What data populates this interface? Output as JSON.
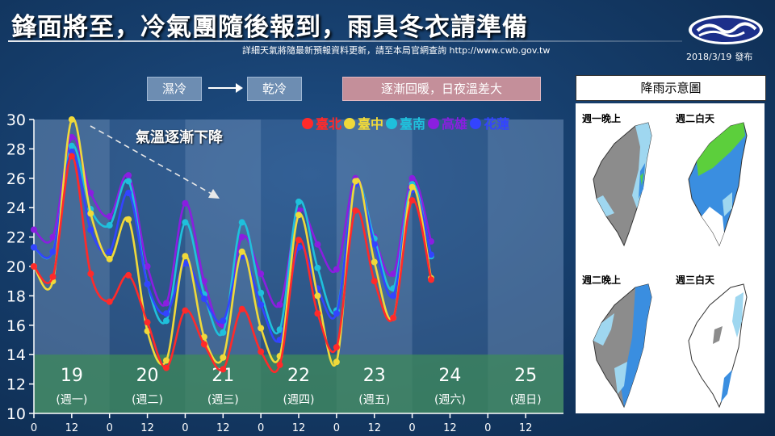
{
  "header": {
    "title": "鋒面將至，冷氣團隨後報到，雨具冬衣請準備",
    "note": "詳細天氣將隨最新預報資料更新，請至本局官網查詢  http://www.cwb.gov.tw",
    "issue_date": "2018/3/19",
    "issue_label": "發布"
  },
  "phase": {
    "wet_cold": "濕冷",
    "dry_cold": "乾冷",
    "warming": "逐漸回暖，日夜溫差大"
  },
  "annotation": "氣溫逐漸下降",
  "rain": {
    "title": "降雨示意圖",
    "panels": [
      {
        "label": "週一晚上"
      },
      {
        "label": "週二白天"
      },
      {
        "label": "週二晚上"
      },
      {
        "label": "週三白天"
      }
    ]
  },
  "colors": {
    "taipei": "#ff2a2a",
    "taichung": "#f0d93a",
    "tainan": "#1fc0dc",
    "kaohsiung": "#8a1ee0",
    "hualien": "#3344ff",
    "cold_band": "#3e8a5a"
  },
  "chart_data": {
    "type": "line",
    "x": [
      0,
      6,
      12,
      18,
      24,
      30,
      36,
      42,
      48,
      54,
      60,
      66,
      72,
      78,
      84,
      90,
      96,
      102,
      108,
      114,
      120,
      126,
      132,
      138,
      144,
      150,
      156,
      162,
      168
    ],
    "x_unit": "hours from 3/19 00:00",
    "ylim": [
      10,
      30
    ],
    "yticks": [
      10,
      12,
      14,
      16,
      18,
      20,
      22,
      24,
      26,
      28,
      30
    ],
    "xtick_labels": [
      "0",
      "12",
      "0",
      "12",
      "0",
      "12",
      "0",
      "12",
      "0",
      "12",
      "0",
      "12",
      "0",
      "12"
    ],
    "days": [
      {
        "date": "19",
        "weekday": "(週一)"
      },
      {
        "date": "20",
        "weekday": "(週二)"
      },
      {
        "date": "21",
        "weekday": "(週三)"
      },
      {
        "date": "22",
        "weekday": "(週四)"
      },
      {
        "date": "23",
        "weekday": "(週五)"
      },
      {
        "date": "24",
        "weekday": "(週六)"
      },
      {
        "date": "25",
        "weekday": "(週日)"
      }
    ],
    "series": [
      {
        "name": "臺北",
        "color_key": "taipei",
        "values": [
          20,
          19.3,
          27.5,
          19.5,
          17.6,
          19.4,
          16.2,
          13.1,
          17,
          14.7,
          13,
          17.1,
          14.2,
          13.3,
          21.8,
          16.8,
          14.5,
          23.8,
          19,
          16.5,
          24.5,
          19.1,
          null,
          null,
          null,
          null,
          null,
          null,
          null
        ]
      },
      {
        "name": "臺中",
        "color_key": "taichung",
        "values": [
          20,
          19,
          30,
          23.6,
          20.5,
          23.2,
          15.6,
          13.6,
          20.7,
          15.2,
          13.8,
          21,
          15.8,
          13.9,
          23.5,
          18,
          13.5,
          25.8,
          20.3,
          16.5,
          25.4,
          19.2,
          null,
          null,
          null,
          null,
          null,
          null,
          null
        ]
      },
      {
        "name": "臺南",
        "color_key": "tainan",
        "values": [
          21.3,
          21,
          28.2,
          23.9,
          22.8,
          25.8,
          18.8,
          16.3,
          23,
          18.1,
          15.5,
          23,
          18.2,
          15.7,
          24.4,
          19.9,
          17,
          25.7,
          21.9,
          18.5,
          25.6,
          20.7,
          null,
          null,
          null,
          null,
          null,
          null,
          null
        ]
      },
      {
        "name": "高雄",
        "color_key": "kaohsiung",
        "values": [
          22.5,
          22,
          28.8,
          25,
          23.4,
          26.2,
          20,
          17.5,
          24.3,
          19,
          16,
          22,
          19.5,
          17.4,
          23.8,
          21.5,
          19.8,
          26,
          22,
          19.5,
          26,
          21.7,
          null,
          null,
          null,
          null,
          null,
          null,
          null
        ]
      },
      {
        "name": "花蓮",
        "color_key": "hualien",
        "values": [
          21.3,
          21,
          27.8,
          22.5,
          21,
          25,
          18.8,
          16.8,
          20.2,
          17.8,
          16.3,
          20.7,
          17.4,
          15,
          21.3,
          18.5,
          16.8,
          25.6,
          21.5,
          18,
          25.2,
          20.8,
          null,
          null,
          null,
          null,
          null,
          null,
          null
        ]
      }
    ]
  }
}
